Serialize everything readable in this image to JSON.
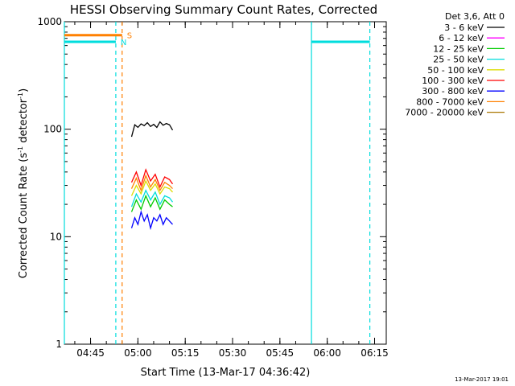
{
  "chart_data": {
    "type": "line",
    "title": "HESSI Observing Summary Count Rates, Corrected",
    "xlabel": "Start Time (13-Mar-17 04:36:42)",
    "ylabel_main": "Corrected Count Rate (s",
    "ylabel_sup1": "-1",
    "ylabel_mid": " detector",
    "ylabel_sup2": "-1",
    "ylabel_end": ")",
    "ylog": true,
    "ylim": [
      1,
      1000
    ],
    "xlim": [
      "04:36:42",
      "06:18:42"
    ],
    "x_ticks": [
      "04:45",
      "05:00",
      "05:15",
      "05:30",
      "05:45",
      "06:00",
      "06:15"
    ],
    "x_tick_minutes": [
      285,
      300,
      315,
      330,
      345,
      360,
      375
    ],
    "y_ticks": [
      {
        "value": 1,
        "label": "1"
      },
      {
        "value": 10,
        "label": "10"
      },
      {
        "value": 100,
        "label": "100"
      },
      {
        "value": 1000,
        "label": "1000"
      }
    ],
    "legend_header": "Det 3,6, Att 0",
    "legend_placement": "top-right",
    "series": [
      {
        "name": "3 - 6 keV",
        "color": "#000000",
        "x_min": [
          298.0,
          299.0,
          300.0,
          301.0,
          302.0,
          303.0,
          304.0,
          305.0,
          306.0,
          307.0,
          308.0,
          309.0,
          310.0,
          311.0
        ],
        "values": [
          85,
          110,
          104,
          112,
          108,
          115,
          106,
          111,
          104,
          117,
          109,
          113,
          110,
          98
        ]
      },
      {
        "name": "6 - 12 keV",
        "color": "#ff00ff",
        "x_min": [],
        "values": []
      },
      {
        "name": "12 - 25 keV",
        "color": "#00cc00",
        "x_min": [
          298.0,
          299.5,
          301.0,
          302.5,
          304.0,
          305.5,
          307.0,
          308.5,
          310.0,
          311.0
        ],
        "values": [
          17,
          22,
          18,
          24,
          19,
          23,
          18,
          22,
          20,
          19
        ]
      },
      {
        "name": "25 - 50 keV",
        "color": "#00dddd",
        "x_min": [
          298.0,
          299.5,
          301.0,
          302.5,
          304.0,
          305.5,
          307.0,
          308.5,
          310.0,
          311.0
        ],
        "values": [
          19,
          25,
          21,
          27,
          22,
          26,
          20,
          24,
          23,
          21
        ]
      },
      {
        "name": "50 - 100 keV",
        "color": "#dddd00",
        "x_min": [
          298.0,
          299.5,
          301.0,
          302.5,
          304.0,
          305.5,
          307.0,
          308.5,
          310.0,
          311.0
        ],
        "values": [
          24,
          30,
          25,
          33,
          27,
          31,
          25,
          29,
          28,
          26
        ]
      },
      {
        "name": "100 - 300 keV",
        "color": "#ff0000",
        "x_min": [
          298.0,
          299.5,
          301.0,
          302.5,
          304.0,
          305.5,
          307.0,
          308.5,
          310.0,
          311.0
        ],
        "values": [
          32,
          40,
          30,
          42,
          33,
          38,
          29,
          36,
          34,
          31
        ]
      },
      {
        "name": "300 - 800 keV",
        "color": "#0000ff",
        "x_min": [
          298.0,
          299.0,
          300.0,
          301.0,
          302.0,
          303.0,
          304.0,
          305.0,
          306.0,
          307.0,
          308.0,
          309.0,
          310.0,
          311.0
        ],
        "values": [
          12,
          15,
          13,
          17,
          14,
          16,
          12,
          15,
          14,
          16,
          13,
          15,
          14,
          13
        ]
      },
      {
        "name": "800 - 7000 keV",
        "color": "#ff8000",
        "x_min": [
          298.0,
          299.5,
          301.0,
          302.5,
          304.0,
          305.5,
          307.0,
          308.5,
          310.0,
          311.0
        ],
        "values": [
          28,
          35,
          27,
          37,
          29,
          34,
          27,
          32,
          30,
          28
        ]
      },
      {
        "name": "7000 - 20000 keV",
        "color": "#aa7700",
        "x_min": [],
        "values": []
      }
    ],
    "intervals": [
      {
        "label": "S",
        "color": "#ff8000",
        "y": 750,
        "x_start_min": 276.7,
        "x_end_min": 295.0
      },
      {
        "label": "N",
        "color": "#00dddd",
        "y": 650,
        "x_start_min": 276.7,
        "x_end_min": 293.0
      },
      {
        "label": "",
        "color": "#00dddd",
        "y": 650,
        "x_start_min": 355.0,
        "x_end_min": 373.5
      }
    ],
    "vlines": [
      {
        "x_min": 276.7,
        "color": "#00dddd",
        "style": "solid"
      },
      {
        "x_min": 293.0,
        "color": "#00dddd",
        "style": "dashed"
      },
      {
        "x_min": 295.0,
        "color": "#ff8000",
        "style": "dashed"
      },
      {
        "x_min": 355.0,
        "color": "#00dddd",
        "style": "solid"
      },
      {
        "x_min": 373.5,
        "color": "#00dddd",
        "style": "dashed"
      }
    ],
    "footer_date": "13-Mar-2017 19:01"
  }
}
